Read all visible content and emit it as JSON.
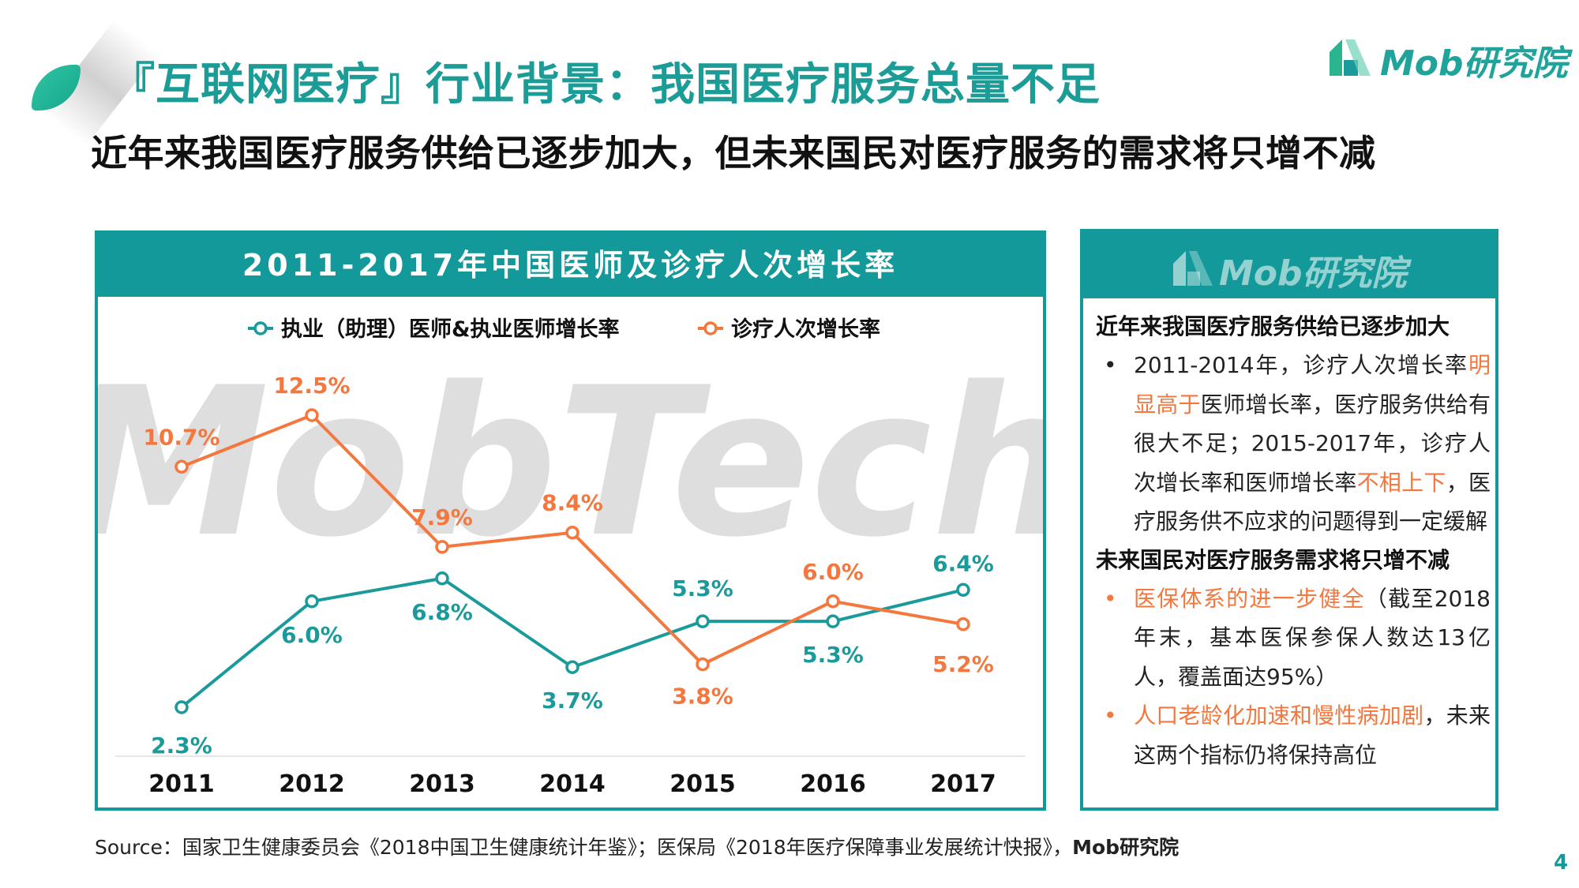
{
  "header": {
    "title": "『互联网医疗』行业背景：我国医疗服务总量不足",
    "subtitle": "近年来我国医疗服务供给已逐步加大，但未来国民对医疗服务的需求将只增不减"
  },
  "brand": {
    "name": "Mob研究院",
    "watermark": "MobTech"
  },
  "chart_title": "2011-2017年中国医师及诊疗人次增长率",
  "chart_data": {
    "type": "line",
    "categories": [
      "2011",
      "2012",
      "2013",
      "2014",
      "2015",
      "2016",
      "2017"
    ],
    "series": [
      {
        "name": "执业（助理）医师&执业医师增长率",
        "color": "#1b9a9b",
        "values": [
          2.3,
          6.0,
          6.8,
          3.7,
          5.3,
          5.3,
          6.4
        ],
        "labels": [
          "2.3%",
          "6.0%",
          "6.8%",
          "3.7%",
          "5.3%",
          "5.3%",
          "6.4%"
        ]
      },
      {
        "name": "诊疗人次增长率",
        "color": "#f4773e",
        "values": [
          10.7,
          12.5,
          7.9,
          8.4,
          3.8,
          6.0,
          5.2
        ],
        "labels": [
          "10.7%",
          "12.5%",
          "7.9%",
          "8.4%",
          "3.8%",
          "6.0%",
          "5.2%"
        ]
      }
    ],
    "ylim": [
      0,
      14
    ],
    "grid": false,
    "legend": "top"
  },
  "info": {
    "heading1": "近年来我国医疗服务供给已逐步加大",
    "item1": {
      "bullet": "•",
      "t1": "2011-2014年，诊疗人次增长率",
      "h1": "明显高于",
      "t2": "医师增长率，医疗服务供给有很大不足；2015-2017年，诊疗人次增长率和医师增长率",
      "h2": "不相上下",
      "t3": "，医疗服务供不应求的问题得到一定缓解"
    },
    "heading2": "未来国民对医疗服务需求将只增不减",
    "item2": {
      "bullet": "•",
      "h1": "医保体系的进一步健全",
      "t1": "（截至2018年末，基本医保参保人数达13亿人，覆盖面达95%）"
    },
    "item3": {
      "bullet": "•",
      "h1": "人口老龄化加速和慢性病加剧",
      "t1": "，未来这两个指标仍将保持高位"
    }
  },
  "source": {
    "prefix": "Source：国家卫生健康委员会《2018中国卫生健康统计年鉴》；医保局《2018年医疗保障事业发展统计快报》，",
    "brand": "Mob研究院"
  },
  "page_number": "4"
}
